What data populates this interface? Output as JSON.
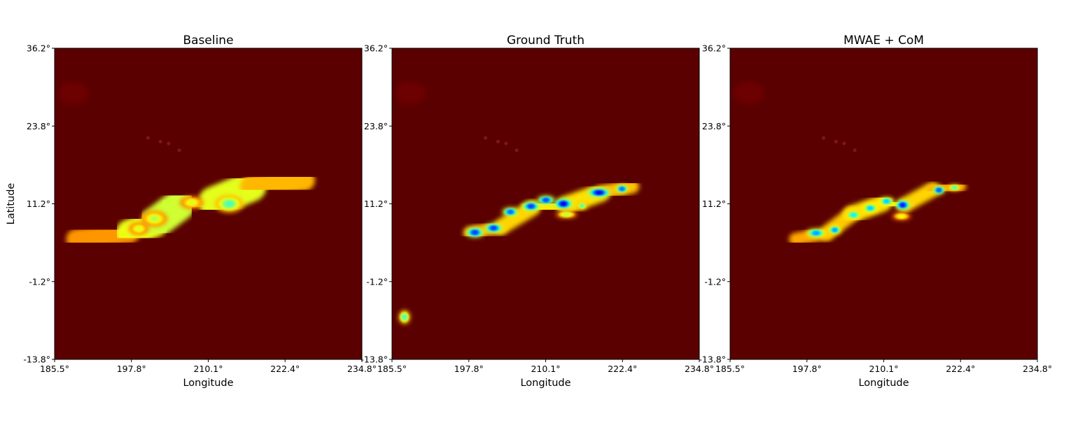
{
  "chart_data": [
    {
      "type": "heatmap",
      "title": "Baseline",
      "xlabel": "Longitude",
      "ylabel": "Latitude",
      "xlim": [
        185.5,
        234.8
      ],
      "ylim": [
        -13.8,
        36.2
      ],
      "xticks": [
        "185.5°",
        "197.8°",
        "210.1°",
        "222.4°",
        "234.8°"
      ],
      "yticks": [
        "36.2°",
        "23.8°",
        "11.2°",
        "-1.2°",
        "-13.8°"
      ],
      "colormap": "jet",
      "background_color": "#5a0000",
      "features": [
        {
          "shape": "band",
          "points": [
            [
              189,
              5.5
            ],
            [
              197.5,
              6.5
            ],
            [
              201.5,
              8
            ],
            [
              205.5,
              11
            ],
            [
              211,
              11.5
            ],
            [
              217,
              14
            ],
            [
              225.5,
              15
            ]
          ],
          "widths": [
            1.2,
            1.8,
            2.2,
            2.4,
            2.5,
            2.0,
            1.2
          ],
          "intensity": [
            0.12,
            0.28,
            0.42,
            0.35,
            0.42,
            0.3,
            0.18
          ]
        },
        {
          "shape": "blob",
          "center": [
            213.5,
            11.2
          ],
          "rx": 2.2,
          "ry": 1.3,
          "intensity": 0.55
        },
        {
          "shape": "blob",
          "center": [
            201.5,
            8.8
          ],
          "rx": 2.0,
          "ry": 1.2,
          "intensity": 0.42
        },
        {
          "shape": "blob",
          "center": [
            199,
            7.2
          ],
          "rx": 1.5,
          "ry": 0.9,
          "intensity": 0.38
        },
        {
          "shape": "blob",
          "center": [
            207.5,
            11.4
          ],
          "rx": 1.8,
          "ry": 0.9,
          "intensity": 0.38
        }
      ]
    },
    {
      "type": "heatmap",
      "title": "Ground Truth",
      "xlabel": "Longitude",
      "ylabel": "",
      "xlim": [
        185.5,
        234.8
      ],
      "ylim": [
        -13.8,
        36.2
      ],
      "xticks": [
        "185.5°",
        "197.8°",
        "210.1°",
        "222.4°",
        "234.8°"
      ],
      "yticks": [
        "36.2°",
        "23.8°",
        "11.2°",
        "-1.2°",
        "-13.8°"
      ],
      "colormap": "jet",
      "background_color": "#5a0000",
      "features": [
        {
          "shape": "band",
          "points": [
            [
              198,
              6.5
            ],
            [
              203,
              7.5
            ],
            [
              208,
              10.5
            ],
            [
              213.5,
              11
            ],
            [
              219,
              13
            ],
            [
              224,
              14
            ]
          ],
          "widths": [
            0.9,
            1.0,
            1.3,
            1.5,
            1.2,
            0.9
          ],
          "intensity": [
            0.22,
            0.25,
            0.3,
            0.3,
            0.28,
            0.22
          ]
        },
        {
          "shape": "blob",
          "center": [
            198.8,
            6.6
          ],
          "rx": 1.4,
          "ry": 0.7,
          "intensity": 0.9
        },
        {
          "shape": "blob",
          "center": [
            201.8,
            7.3
          ],
          "rx": 1.4,
          "ry": 0.65,
          "intensity": 0.9
        },
        {
          "shape": "blob",
          "center": [
            204.5,
            9.9
          ],
          "rx": 1.2,
          "ry": 0.6,
          "intensity": 0.85
        },
        {
          "shape": "blob",
          "center": [
            207.8,
            10.8
          ],
          "rx": 1.4,
          "ry": 0.65,
          "intensity": 0.9
        },
        {
          "shape": "blob",
          "center": [
            210.2,
            11.8
          ],
          "rx": 1.3,
          "ry": 0.6,
          "intensity": 0.88
        },
        {
          "shape": "blob",
          "center": [
            213.0,
            11.2
          ],
          "rx": 1.4,
          "ry": 0.75,
          "intensity": 1.0
        },
        {
          "shape": "blob",
          "center": [
            218.7,
            13.0
          ],
          "rx": 1.8,
          "ry": 0.6,
          "intensity": 1.0
        },
        {
          "shape": "blob",
          "center": [
            222.4,
            13.6
          ],
          "rx": 0.9,
          "ry": 0.5,
          "intensity": 0.85
        },
        {
          "shape": "blob",
          "center": [
            213.5,
            9.5
          ],
          "rx": 1.6,
          "ry": 0.5,
          "intensity": 0.42
        },
        {
          "shape": "blob",
          "center": [
            216.0,
            10.9
          ],
          "rx": 0.7,
          "ry": 0.5,
          "intensity": 0.55
        },
        {
          "shape": "blob",
          "center": [
            187.5,
            -7.0
          ],
          "rx": 0.8,
          "ry": 1.0,
          "intensity": 0.55
        }
      ]
    },
    {
      "type": "heatmap",
      "title": "MWAE + CoM",
      "xlabel": "Longitude",
      "ylabel": "",
      "xlim": [
        185.5,
        234.8
      ],
      "ylim": [
        -13.8,
        36.2
      ],
      "xticks": [
        "185.5°",
        "197.8°",
        "210.1°",
        "222.4°",
        "234.8°"
      ],
      "yticks": [
        "36.2°",
        "23.8°",
        "11.2°",
        "-1.2°",
        "-13.8°"
      ],
      "colormap": "jet",
      "background_color": "#5a0000",
      "features": [
        {
          "shape": "band",
          "points": [
            [
              196,
              5.5
            ],
            [
              201,
              6.5
            ],
            [
              205,
              9.5
            ],
            [
              210,
              11.3
            ],
            [
              213.5,
              11
            ],
            [
              218,
              13.5
            ],
            [
              222.5,
              14
            ]
          ],
          "widths": [
            0.9,
            1.0,
            1.2,
            1.3,
            1.3,
            0.9,
            0.7
          ],
          "intensity": [
            0.2,
            0.24,
            0.28,
            0.3,
            0.3,
            0.25,
            0.2
          ]
        },
        {
          "shape": "blob",
          "center": [
            199.3,
            6.5
          ],
          "rx": 1.5,
          "ry": 0.6,
          "intensity": 0.78
        },
        {
          "shape": "blob",
          "center": [
            202.3,
            7.0
          ],
          "rx": 0.9,
          "ry": 0.55,
          "intensity": 0.78
        },
        {
          "shape": "blob",
          "center": [
            205.3,
            9.4
          ],
          "rx": 1.2,
          "ry": 0.55,
          "intensity": 0.65
        },
        {
          "shape": "blob",
          "center": [
            208.0,
            10.5
          ],
          "rx": 1.1,
          "ry": 0.55,
          "intensity": 0.72
        },
        {
          "shape": "blob",
          "center": [
            210.6,
            11.6
          ],
          "rx": 1.1,
          "ry": 0.55,
          "intensity": 0.72
        },
        {
          "shape": "blob",
          "center": [
            213.2,
            11.0
          ],
          "rx": 1.1,
          "ry": 0.7,
          "intensity": 0.95
        },
        {
          "shape": "blob",
          "center": [
            219.0,
            13.4
          ],
          "rx": 0.9,
          "ry": 0.55,
          "intensity": 0.88
        },
        {
          "shape": "blob",
          "center": [
            221.5,
            13.8
          ],
          "rx": 1.0,
          "ry": 0.4,
          "intensity": 0.55
        },
        {
          "shape": "blob",
          "center": [
            213.0,
            9.2
          ],
          "rx": 1.4,
          "ry": 0.5,
          "intensity": 0.35
        }
      ]
    }
  ]
}
